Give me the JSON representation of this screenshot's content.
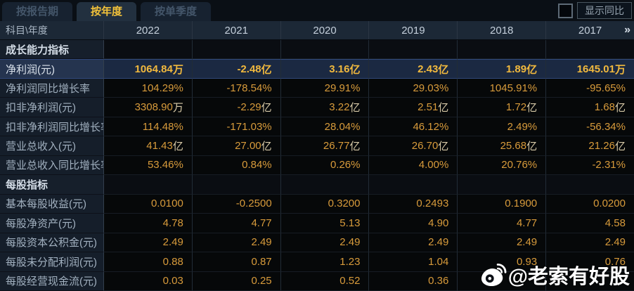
{
  "tabs": [
    {
      "name": "tab-by-report-period",
      "label": "按报告期",
      "selected": false
    },
    {
      "name": "tab-by-year",
      "label": "按年度",
      "selected": true
    },
    {
      "name": "tab-by-quarter",
      "label": "按单季度",
      "selected": false
    }
  ],
  "controls": {
    "show_yoy_label": "显示同比",
    "show_yoy_checked": false
  },
  "table": {
    "corner_header": "科目\\年度",
    "years": [
      "2022",
      "2021",
      "2020",
      "2019",
      "2018",
      "2017"
    ],
    "more_icon": "»",
    "rows": [
      {
        "type": "section",
        "label": "成长能力指标",
        "values": [
          "",
          "",
          "",
          "",
          "",
          ""
        ]
      },
      {
        "type": "highlight",
        "label": "净利润(元)",
        "values": [
          "1064.84万",
          "-2.48亿",
          "3.16亿",
          "2.43亿",
          "1.89亿",
          "1645.01万"
        ]
      },
      {
        "type": "data",
        "label": "净利润同比增长率",
        "values": [
          "104.29%",
          "-178.54%",
          "29.91%",
          "29.03%",
          "1045.91%",
          "-95.65%"
        ]
      },
      {
        "type": "data",
        "label": "扣非净利润(元)",
        "values": [
          "3308.90万",
          "-2.29亿",
          "3.22亿",
          "2.51亿",
          "1.72亿",
          "1.68亿"
        ]
      },
      {
        "type": "data",
        "label": "扣非净利润同比增长率",
        "values": [
          "114.48%",
          "-171.03%",
          "28.04%",
          "46.12%",
          "2.49%",
          "-56.34%"
        ]
      },
      {
        "type": "data",
        "label": "营业总收入(元)",
        "values": [
          "41.43亿",
          "27.00亿",
          "26.77亿",
          "26.70亿",
          "25.68亿",
          "21.26亿"
        ]
      },
      {
        "type": "data",
        "label": "营业总收入同比增长率",
        "values": [
          "53.46%",
          "0.84%",
          "0.26%",
          "4.00%",
          "20.76%",
          "-2.31%"
        ]
      },
      {
        "type": "section",
        "label": "每股指标",
        "values": [
          "",
          "",
          "",
          "",
          "",
          ""
        ]
      },
      {
        "type": "data",
        "label": "基本每股收益(元)",
        "values": [
          "0.0100",
          "-0.2500",
          "0.3200",
          "0.2493",
          "0.1900",
          "0.0200"
        ]
      },
      {
        "type": "data",
        "label": "每股净资产(元)",
        "values": [
          "4.78",
          "4.77",
          "5.13",
          "4.90",
          "4.77",
          "4.58"
        ]
      },
      {
        "type": "data",
        "label": "每股资本公积金(元)",
        "values": [
          "2.49",
          "2.49",
          "2.49",
          "2.49",
          "2.49",
          "2.49"
        ]
      },
      {
        "type": "data",
        "label": "每股未分配利润(元)",
        "values": [
          "0.88",
          "0.87",
          "1.23",
          "1.04",
          "0.93",
          "0.76"
        ]
      },
      {
        "type": "data",
        "label": "每股经营现金流(元)",
        "values": [
          "0.03",
          "0.25",
          "0.52",
          "0.36",
          "",
          ""
        ]
      }
    ]
  },
  "watermark": {
    "icon": "weibo-icon",
    "text": "@老索有好股"
  },
  "colors": {
    "accent_yellow": "#f2c23a",
    "value_orange": "#d89b3b",
    "highlight_row_bg": "#1b2942",
    "header_bg": "#1c2836",
    "label_col_bg": "#151e2a",
    "watermark": "#ffffff"
  }
}
